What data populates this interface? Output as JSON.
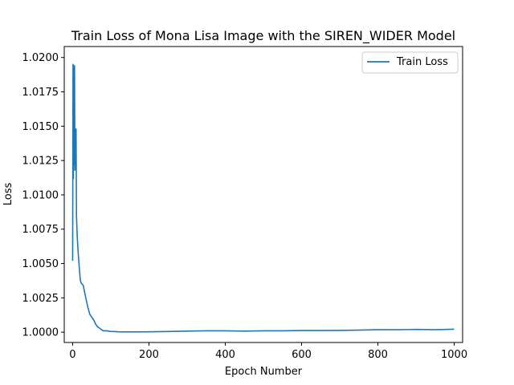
{
  "chart_data": {
    "type": "line",
    "title": "Train Loss of Mona Lisa Image with the SIREN_WIDER Model",
    "xlabel": "Epoch Number",
    "ylabel": "Loss",
    "xlim": [
      -22,
      1022
    ],
    "ylim": [
      0.99925,
      1.0208
    ],
    "xticks": [
      0,
      200,
      400,
      600,
      800,
      1000
    ],
    "xtick_labels": [
      "0",
      "200",
      "400",
      "600",
      "800",
      "1000"
    ],
    "yticks": [
      1.0,
      1.0025,
      1.005,
      1.0075,
      1.01,
      1.0125,
      1.015,
      1.0175,
      1.02
    ],
    "ytick_labels": [
      "1.0000",
      "1.0025",
      "1.0050",
      "1.0075",
      "1.0100",
      "1.0125",
      "1.0150",
      "1.0175",
      "1.0200"
    ],
    "grid": false,
    "legend": {
      "position": "top-right",
      "entries": [
        "Train Loss"
      ]
    },
    "series": [
      {
        "name": "Train Loss",
        "color": "#1f77b4",
        "x": [
          0,
          1,
          2,
          3,
          4,
          5,
          6,
          7,
          8,
          9,
          10,
          12,
          14,
          16,
          18,
          20,
          22,
          25,
          28,
          30,
          33,
          36,
          40,
          45,
          50,
          55,
          60,
          65,
          70,
          75,
          80,
          90,
          100,
          110,
          120,
          150,
          200,
          250,
          300,
          350,
          400,
          450,
          500,
          550,
          600,
          650,
          700,
          750,
          800,
          850,
          900,
          950,
          1000
        ],
        "y": [
          1.0052,
          1.0195,
          1.0112,
          1.0194,
          1.0122,
          1.0194,
          1.0118,
          1.0145,
          1.0125,
          1.0148,
          1.0085,
          1.007,
          1.006,
          1.0052,
          1.0045,
          1.0038,
          1.0036,
          1.0035,
          1.0034,
          1.0031,
          1.0027,
          1.0023,
          1.0018,
          1.0013,
          1.0011,
          1.0009,
          1.0006,
          1.0004,
          1.0003,
          1.0002,
          1.0001,
          1.0001,
          1.00005,
          1.00005,
          1.00003,
          1.00002,
          1.00003,
          1.00005,
          1.00008,
          1.0001,
          1.0001,
          1.00008,
          1.0001,
          1.0001,
          1.00012,
          1.00012,
          1.00013,
          1.00015,
          1.00018,
          1.00018,
          1.0002,
          1.00018,
          1.00022
        ]
      }
    ]
  }
}
